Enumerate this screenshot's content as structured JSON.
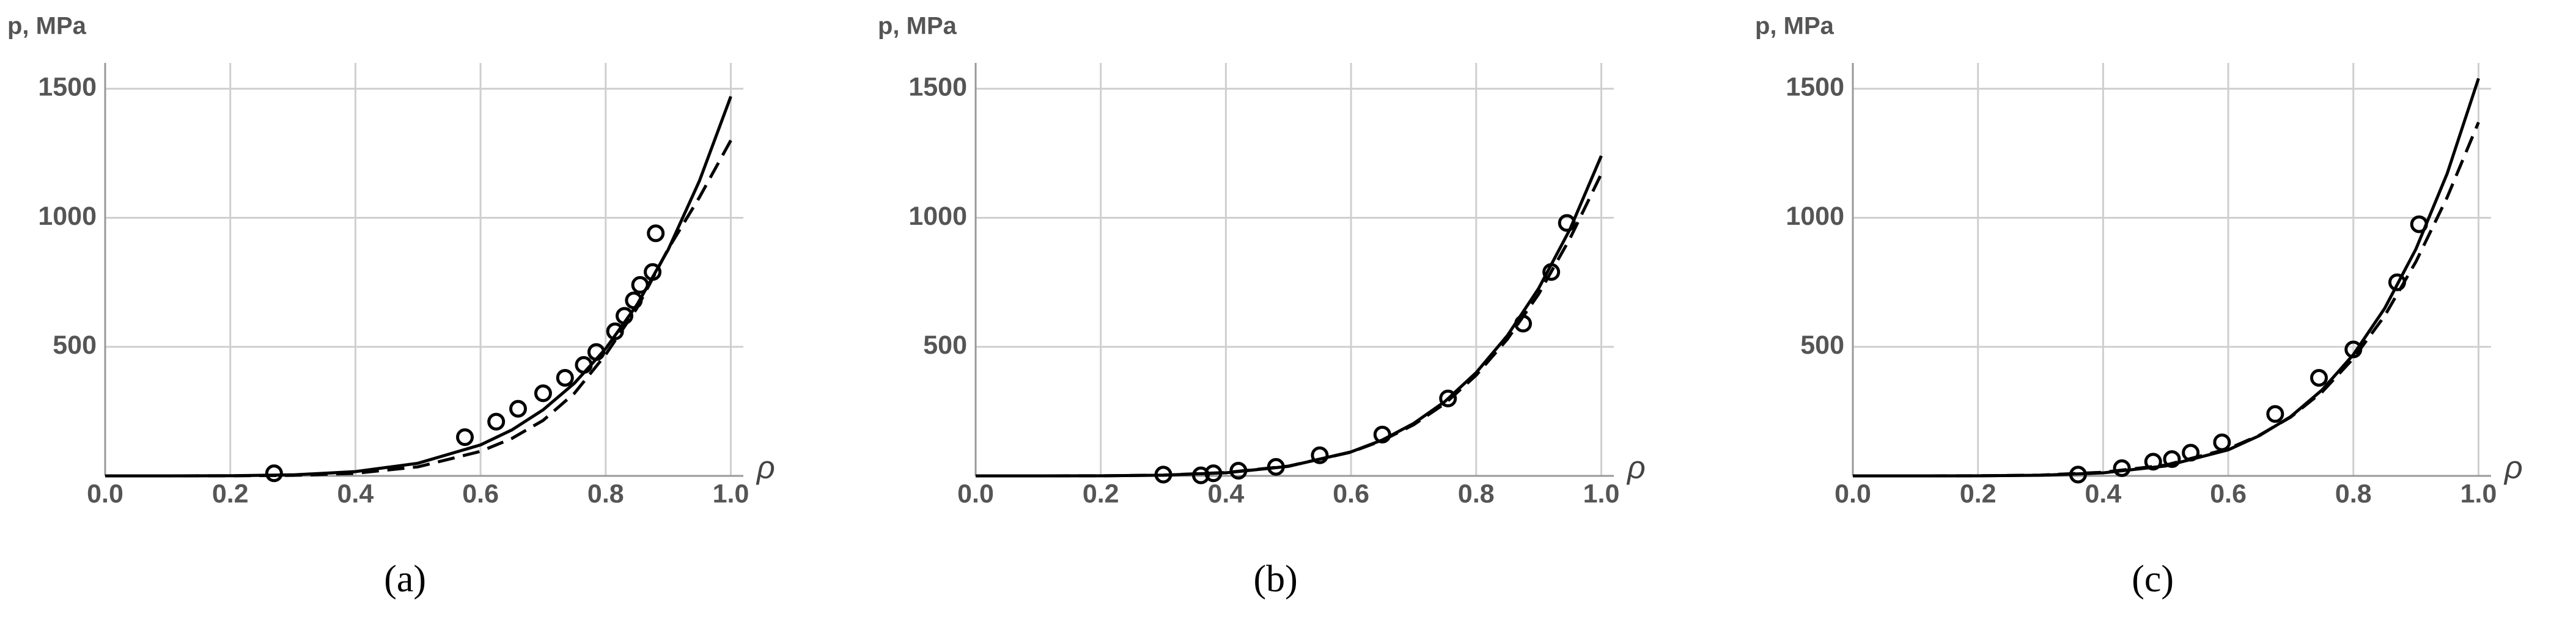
{
  "chart_data": [
    {
      "type": "scatter",
      "caption": "(a)",
      "ylabel": "p, MPa",
      "xlabel": "ρ",
      "xlim": [
        0,
        1.02
      ],
      "ylim": [
        0,
        1600
      ],
      "xticks": [
        {
          "value": 0,
          "label": "0.0"
        },
        0.2,
        0.4,
        0.6,
        0.8,
        {
          "value": 1,
          "label": "1.0"
        }
      ],
      "yticks": [
        500,
        1000,
        1500
      ],
      "grid": true,
      "series": [
        {
          "style": "markers",
          "color": "#000000",
          "x": [
            0.27,
            0.575,
            0.625,
            0.66,
            0.7,
            0.735,
            0.765,
            0.785,
            0.815,
            0.83,
            0.845,
            0.855,
            0.875,
            0.88
          ],
          "values": [
            10,
            150,
            210,
            260,
            320,
            380,
            430,
            480,
            560,
            620,
            680,
            740,
            790,
            940
          ]
        },
        {
          "style": "solid",
          "color": "#000000",
          "x": [
            0,
            0.1,
            0.2,
            0.3,
            0.4,
            0.5,
            0.6,
            0.65,
            0.7,
            0.75,
            0.8,
            0.85,
            0.9,
            0.95,
            1
          ],
          "values": [
            0,
            0.02,
            0.55,
            4,
            16.5,
            49,
            120,
            178,
            256,
            359,
            493,
            663,
            877,
            1144,
            1470
          ]
        },
        {
          "style": "dashed",
          "color": "#000000",
          "x": [
            0,
            0.1,
            0.2,
            0.3,
            0.4,
            0.5,
            0.6,
            0.65,
            0.7,
            0.75,
            0.8,
            0.85,
            0.9,
            0.95,
            1
          ],
          "values": [
            0,
            0,
            0.3,
            2,
            10,
            35,
            95,
            145,
            215,
            320,
            470,
            650,
            880,
            1080,
            1300
          ]
        }
      ]
    },
    {
      "type": "scatter",
      "caption": "(b)",
      "ylabel": "p, MPa",
      "xlabel": "ρ",
      "xlim": [
        0,
        1.02
      ],
      "ylim": [
        0,
        1600
      ],
      "xticks": [
        {
          "value": 0,
          "label": "0.0"
        },
        0.2,
        0.4,
        0.6,
        0.8,
        {
          "value": 1,
          "label": "1.0"
        }
      ],
      "yticks": [
        500,
        1000,
        1500
      ],
      "grid": true,
      "series": [
        {
          "style": "markers",
          "color": "#000000",
          "x": [
            0.3,
            0.36,
            0.38,
            0.42,
            0.48,
            0.55,
            0.65,
            0.755,
            0.875,
            0.92,
            0.945
          ],
          "values": [
            5,
            2,
            10,
            20,
            35,
            80,
            160,
            300,
            590,
            790,
            980
          ]
        },
        {
          "style": "solid",
          "color": "#000000",
          "x": [
            0,
            0.1,
            0.2,
            0.3,
            0.4,
            0.5,
            0.6,
            0.65,
            0.7,
            0.75,
            0.8,
            0.85,
            0.9,
            0.95,
            1
          ],
          "values": [
            0,
            0.01,
            0.35,
            2.8,
            12,
            37,
            93,
            139,
            203,
            288,
            400,
            544,
            727,
            956,
            1240
          ]
        },
        {
          "style": "dashed",
          "color": "#000000",
          "x": [
            0,
            0.1,
            0.2,
            0.3,
            0.4,
            0.5,
            0.6,
            0.65,
            0.7,
            0.75,
            0.8,
            0.85,
            0.9,
            0.95,
            1
          ],
          "values": [
            0,
            0,
            0.3,
            3,
            13,
            38,
            92,
            137,
            198,
            280,
            390,
            530,
            705,
            920,
            1170
          ]
        }
      ]
    },
    {
      "type": "scatter",
      "caption": "(c)",
      "ylabel": "p, MPa",
      "xlabel": "ρ",
      "xlim": [
        0,
        1.02
      ],
      "ylim": [
        0,
        1600
      ],
      "xticks": [
        {
          "value": 0,
          "label": "0.0"
        },
        0.2,
        0.4,
        0.6,
        0.8,
        {
          "value": 1,
          "label": "1.0"
        }
      ],
      "yticks": [
        500,
        1000,
        1500
      ],
      "grid": true,
      "series": [
        {
          "style": "markers",
          "color": "#000000",
          "x": [
            0.36,
            0.43,
            0.48,
            0.51,
            0.54,
            0.59,
            0.675,
            0.745,
            0.8,
            0.87,
            0.905
          ],
          "values": [
            5,
            30,
            55,
            65,
            90,
            130,
            240,
            380,
            490,
            750,
            975
          ]
        },
        {
          "style": "solid",
          "color": "#000000",
          "x": [
            0,
            0.1,
            0.2,
            0.3,
            0.4,
            0.5,
            0.6,
            0.65,
            0.7,
            0.75,
            0.8,
            0.85,
            0.9,
            0.95,
            1
          ],
          "values": [
            0,
            0.01,
            0.3,
            2.5,
            11.7,
            38.5,
            101,
            156,
            230,
            333,
            470,
            649,
            879,
            1172,
            1540
          ]
        },
        {
          "style": "dashed",
          "color": "#000000",
          "x": [
            0,
            0.1,
            0.2,
            0.3,
            0.4,
            0.5,
            0.6,
            0.65,
            0.7,
            0.75,
            0.8,
            0.85,
            0.9,
            0.95,
            1
          ],
          "values": [
            0,
            0,
            0.4,
            3,
            14,
            42,
            105,
            158,
            228,
            325,
            455,
            620,
            830,
            1080,
            1370
          ]
        }
      ]
    }
  ]
}
